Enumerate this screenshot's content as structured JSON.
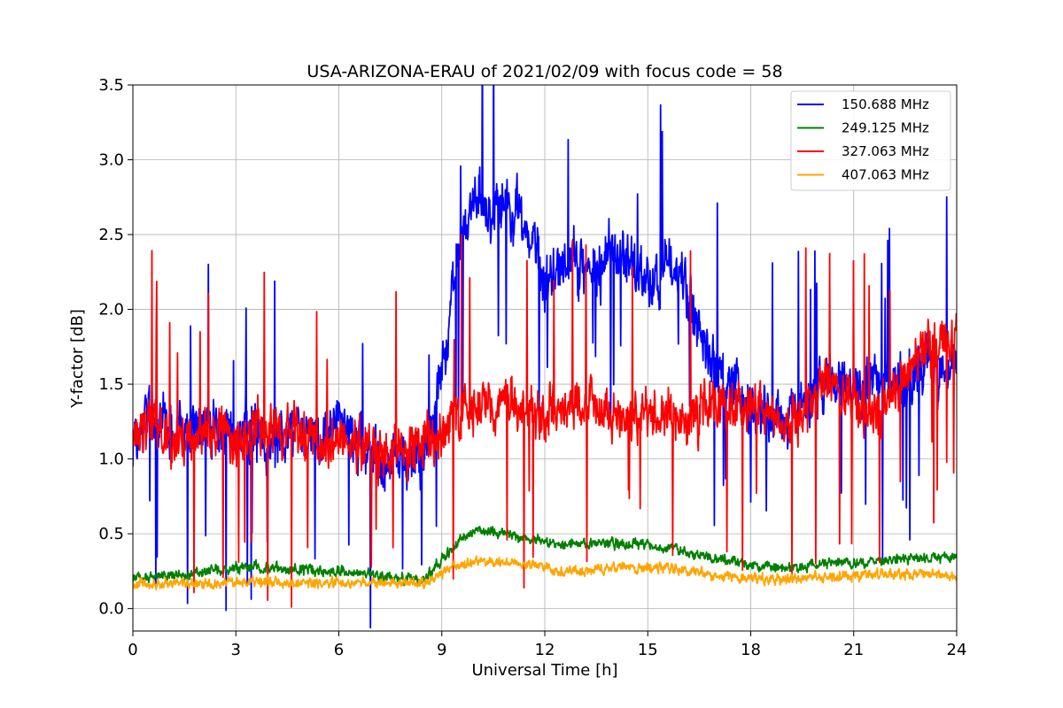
{
  "chart_data": {
    "type": "line",
    "title": "USA-ARIZONA-ERAU of 2021/02/09 with focus code = 58",
    "xlabel": "Universal Time [h]",
    "ylabel": "Y-factor [dB]",
    "xlim": [
      0,
      24
    ],
    "ylim": [
      -0.15,
      3.5
    ],
    "xticks": [
      0,
      3,
      6,
      9,
      12,
      15,
      18,
      21,
      24
    ],
    "xtick_labels": [
      "0",
      "3",
      "6",
      "9",
      "12",
      "15",
      "18",
      "21",
      "24"
    ],
    "yticks": [
      0.0,
      0.5,
      1.0,
      1.5,
      2.0,
      2.5,
      3.0,
      3.5
    ],
    "ytick_labels": [
      "0.0",
      "0.5",
      "1.0",
      "1.5",
      "2.0",
      "2.5",
      "3.0",
      "3.5"
    ],
    "grid": true,
    "legend_position": "top-right",
    "series": [
      {
        "name": "150.688 MHz",
        "color": "#0000ff",
        "x": [
          0,
          0.5,
          1,
          1.5,
          2,
          2.5,
          3,
          3.5,
          4,
          4.5,
          5,
          5.5,
          6,
          6.5,
          7,
          7.5,
          8,
          8.5,
          9,
          9.5,
          10,
          10.5,
          11,
          11.5,
          12,
          12.5,
          13,
          13.5,
          14,
          14.5,
          15,
          15.5,
          16,
          16.5,
          17,
          17.5,
          18,
          18.5,
          19,
          19.5,
          20,
          20.5,
          21,
          21.5,
          22,
          22.5,
          23,
          23.5,
          24
        ],
        "y": [
          1.15,
          1.3,
          1.2,
          1.15,
          1.2,
          1.2,
          1.15,
          1.2,
          1.1,
          1.2,
          1.2,
          1.15,
          1.25,
          1.1,
          1.0,
          1.05,
          0.95,
          1.05,
          1.6,
          2.4,
          2.75,
          2.7,
          2.75,
          2.55,
          2.2,
          2.3,
          2.3,
          2.3,
          2.4,
          2.3,
          2.15,
          2.3,
          2.3,
          1.8,
          1.6,
          1.5,
          1.3,
          1.25,
          1.2,
          1.35,
          1.5,
          1.55,
          1.5,
          1.5,
          1.5,
          1.55,
          1.6,
          1.55,
          1.65
        ],
        "noise": 0.28
      },
      {
        "name": "249.125 MHz",
        "color": "#008000",
        "x": [
          0,
          0.5,
          1,
          1.5,
          2,
          2.5,
          3,
          3.5,
          4,
          4.5,
          5,
          5.5,
          6,
          6.5,
          7,
          7.5,
          8,
          8.5,
          9,
          9.5,
          10,
          10.5,
          11,
          11.5,
          12,
          12.5,
          13,
          13.5,
          14,
          14.5,
          15,
          15.5,
          16,
          16.5,
          17,
          17.5,
          18,
          18.5,
          19,
          19.5,
          20,
          20.5,
          21,
          21.5,
          22,
          22.5,
          23,
          23.5,
          24
        ],
        "y": [
          0.2,
          0.22,
          0.22,
          0.23,
          0.24,
          0.25,
          0.26,
          0.28,
          0.27,
          0.26,
          0.26,
          0.25,
          0.25,
          0.24,
          0.22,
          0.21,
          0.2,
          0.2,
          0.32,
          0.45,
          0.52,
          0.52,
          0.5,
          0.47,
          0.45,
          0.44,
          0.43,
          0.44,
          0.44,
          0.43,
          0.42,
          0.41,
          0.39,
          0.36,
          0.33,
          0.31,
          0.29,
          0.28,
          0.27,
          0.28,
          0.29,
          0.3,
          0.3,
          0.31,
          0.32,
          0.33,
          0.34,
          0.34,
          0.35
        ],
        "noise": 0.05
      },
      {
        "name": "327.063 MHz",
        "color": "#ff0000",
        "x": [
          0,
          0.5,
          1,
          1.5,
          2,
          2.5,
          3,
          3.5,
          4,
          4.5,
          5,
          5.5,
          6,
          6.5,
          7,
          7.5,
          8,
          8.5,
          9,
          9.5,
          10,
          10.5,
          11,
          11.5,
          12,
          12.5,
          13,
          13.5,
          14,
          14.5,
          15,
          15.5,
          16,
          16.5,
          17,
          17.5,
          18,
          18.5,
          19,
          19.5,
          20,
          20.5,
          21,
          21.5,
          22,
          22.5,
          23,
          23.5,
          24
        ],
        "y": [
          1.15,
          1.2,
          1.15,
          1.15,
          1.15,
          1.15,
          1.15,
          1.15,
          1.2,
          1.2,
          1.15,
          1.15,
          1.1,
          1.1,
          1.05,
          1.05,
          1.05,
          1.1,
          1.2,
          1.3,
          1.35,
          1.35,
          1.35,
          1.3,
          1.3,
          1.35,
          1.4,
          1.35,
          1.3,
          1.3,
          1.3,
          1.3,
          1.3,
          1.3,
          1.35,
          1.35,
          1.35,
          1.3,
          1.2,
          1.3,
          1.55,
          1.5,
          1.35,
          1.3,
          1.4,
          1.55,
          1.7,
          1.75,
          1.8
        ],
        "noise": 0.25
      },
      {
        "name": "407.063 MHz",
        "color": "#ffa500",
        "x": [
          0,
          0.5,
          1,
          1.5,
          2,
          2.5,
          3,
          3.5,
          4,
          4.5,
          5,
          5.5,
          6,
          6.5,
          7,
          7.5,
          8,
          8.5,
          9,
          9.5,
          10,
          10.5,
          11,
          11.5,
          12,
          12.5,
          13,
          13.5,
          14,
          14.5,
          15,
          15.5,
          16,
          16.5,
          17,
          17.5,
          18,
          18.5,
          19,
          19.5,
          20,
          20.5,
          21,
          21.5,
          22,
          22.5,
          23,
          23.5,
          24
        ],
        "y": [
          0.17,
          0.17,
          0.17,
          0.17,
          0.17,
          0.17,
          0.18,
          0.18,
          0.18,
          0.17,
          0.17,
          0.17,
          0.17,
          0.17,
          0.17,
          0.17,
          0.17,
          0.17,
          0.24,
          0.3,
          0.32,
          0.32,
          0.31,
          0.3,
          0.27,
          0.25,
          0.25,
          0.26,
          0.27,
          0.27,
          0.27,
          0.27,
          0.26,
          0.24,
          0.22,
          0.21,
          0.2,
          0.2,
          0.2,
          0.21,
          0.21,
          0.22,
          0.22,
          0.23,
          0.23,
          0.23,
          0.23,
          0.23,
          0.22
        ],
        "noise": 0.05
      }
    ]
  }
}
